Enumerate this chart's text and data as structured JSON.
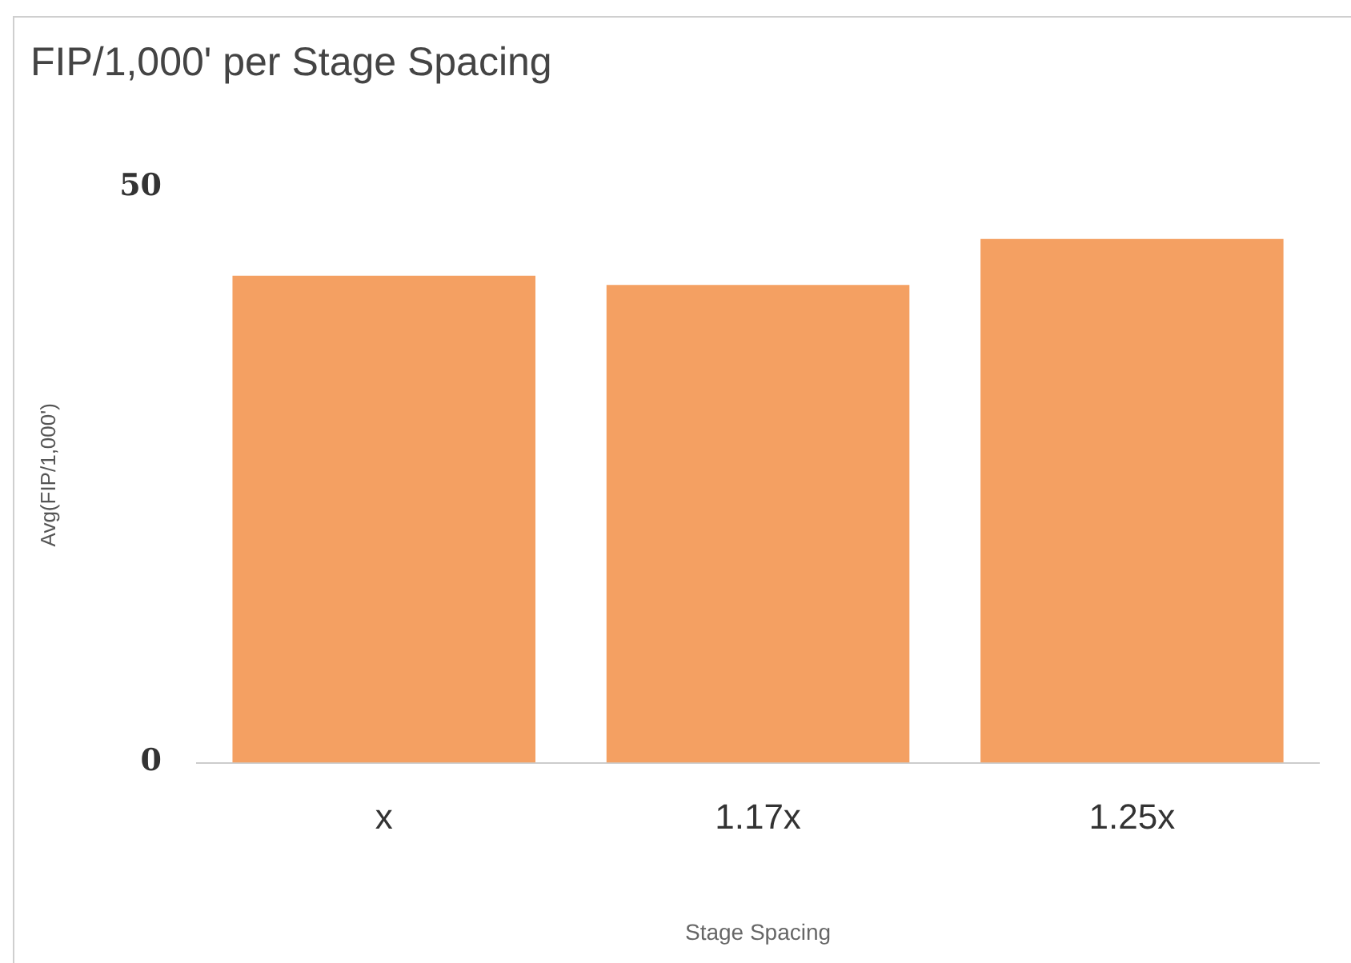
{
  "chart_data": {
    "type": "bar",
    "title": "FIP/1,000' per Stage Spacing",
    "xlabel": "Stage Spacing",
    "ylabel": "Avg(FIP/1,000')",
    "categories": [
      "x",
      "1.17x",
      "1.25x"
    ],
    "values": [
      42.3,
      41.5,
      45.5
    ],
    "color": "#f4a062",
    "ylim": [
      0,
      50
    ],
    "yticks": [
      0,
      50
    ],
    "grid": false,
    "legend": false
  }
}
